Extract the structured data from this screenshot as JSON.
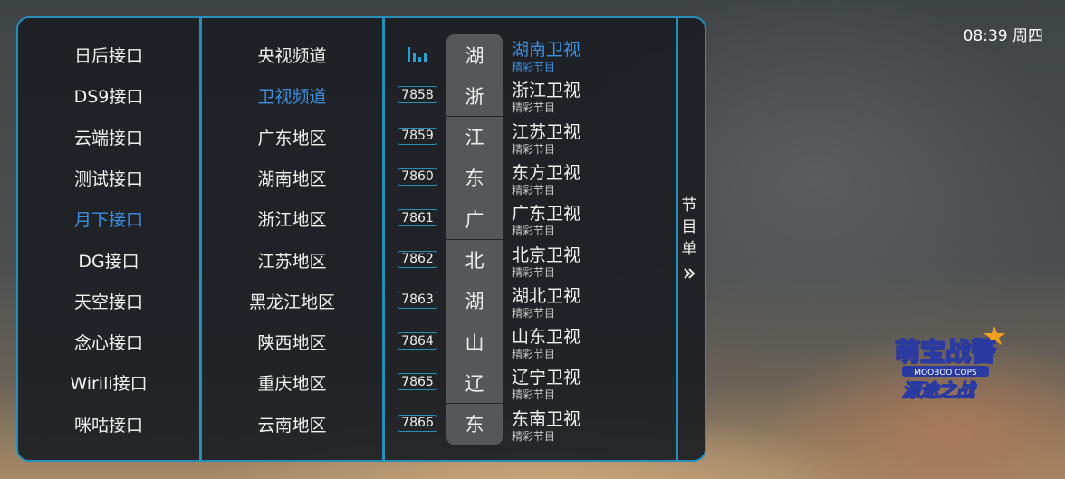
{
  "status": {
    "time": "08:39",
    "weekday": "周四"
  },
  "sources": {
    "items": [
      "日后接口",
      "DS9接口",
      "云端接口",
      "测试接口",
      "月下接口",
      "DG接口",
      "天空接口",
      "念心接口",
      "Wirili接口",
      "咪咕接口"
    ],
    "active_index": 4
  },
  "groups": {
    "items": [
      "央视频道",
      "卫视频道",
      "广东地区",
      "湖南地区",
      "浙江地区",
      "江苏地区",
      "黑龙江地区",
      "陕西地区",
      "重庆地区",
      "云南地区"
    ],
    "active_index": 1
  },
  "channels": [
    {
      "number": "",
      "playing": true,
      "initial": "湖",
      "name": "湖南卫视",
      "program": "精彩节目"
    },
    {
      "number": "7858",
      "initial": "浙",
      "name": "浙江卫视",
      "program": "精彩节目"
    },
    {
      "number": "7859",
      "initial": "江",
      "name": "江苏卫视",
      "program": "精彩节目"
    },
    {
      "number": "7860",
      "initial": "东",
      "name": "东方卫视",
      "program": "精彩节目"
    },
    {
      "number": "7861",
      "initial": "广",
      "name": "广东卫视",
      "program": "精彩节目"
    },
    {
      "number": "7862",
      "initial": "北",
      "name": "北京卫视",
      "program": "精彩节目"
    },
    {
      "number": "7863",
      "initial": "湖",
      "name": "湖北卫视",
      "program": "精彩节目"
    },
    {
      "number": "7864",
      "initial": "山",
      "name": "山东卫视",
      "program": "精彩节目"
    },
    {
      "number": "7865",
      "initial": "辽",
      "name": "辽宁卫视",
      "program": "精彩节目"
    },
    {
      "number": "7866",
      "initial": "东",
      "name": "东南卫视",
      "program": "精彩节目"
    }
  ],
  "epg_button": {
    "label_chars": [
      "节",
      "目",
      "单"
    ],
    "icon": "double-chevron-right-icon"
  },
  "logo": {
    "line1": "萌宝战警",
    "line2": "MOOBOO COPS",
    "line3": "源途之战"
  },
  "colors": {
    "accent": "#3d8fe0",
    "border": "#2a8fb8"
  }
}
